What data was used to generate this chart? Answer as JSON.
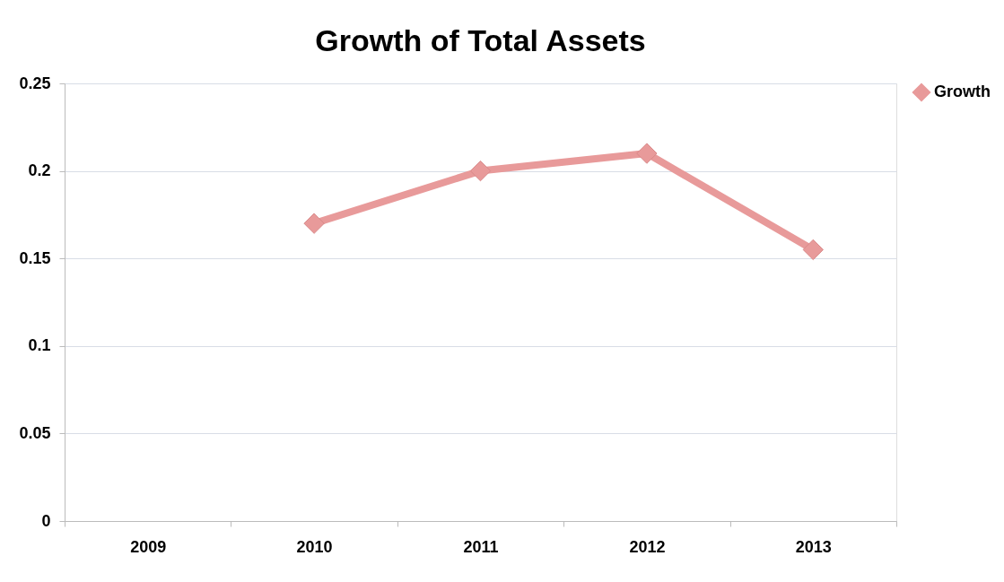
{
  "chart_data": {
    "type": "line",
    "title": "Growth of Total Assets",
    "categories": [
      "2009",
      "2010",
      "2011",
      "2012",
      "2013"
    ],
    "series": [
      {
        "name": "Growth",
        "color": "#e89a9a",
        "values": [
          null,
          0.17,
          0.2,
          0.21,
          0.155
        ]
      }
    ],
    "ylim": [
      0,
      0.25
    ],
    "yticks": [
      0,
      0.05,
      0.1,
      0.15,
      0.2,
      0.25
    ],
    "grid": "y",
    "legend": "right",
    "marker": "diamond",
    "line_style": "solid"
  }
}
